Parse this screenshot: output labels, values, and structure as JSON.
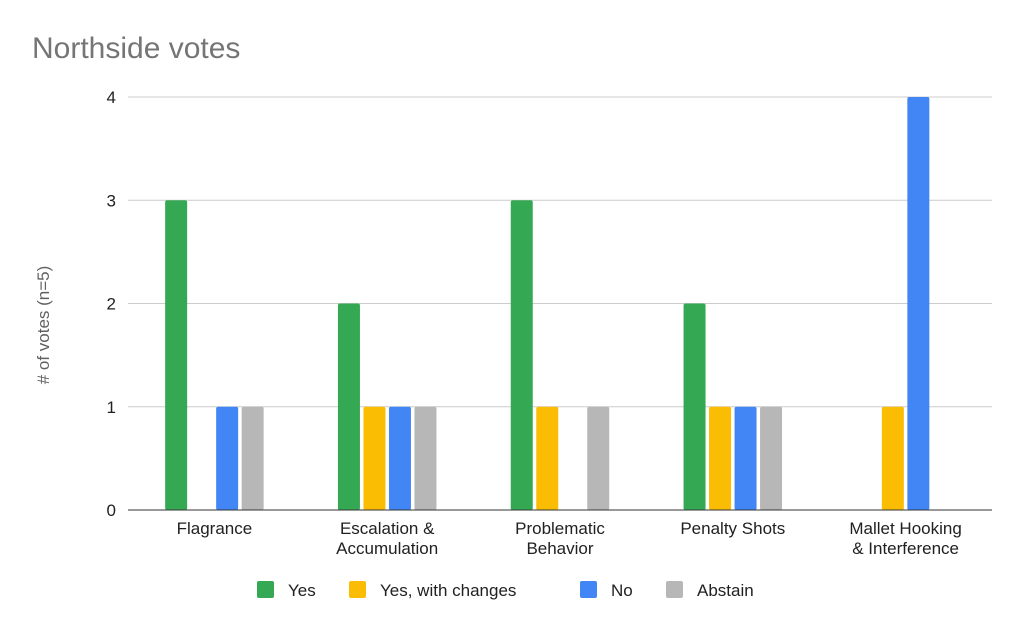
{
  "chart_data": {
    "type": "bar",
    "title": "Northside votes",
    "xlabel": "",
    "ylabel": "# of votes (n=5)",
    "ylim": [
      0,
      4
    ],
    "yticks": [
      0,
      1,
      2,
      3,
      4
    ],
    "grid": true,
    "legend_position": "bottom",
    "categories": [
      [
        "Flagrance"
      ],
      [
        "Escalation &",
        "Accumulation"
      ],
      [
        "Problematic",
        "Behavior"
      ],
      [
        "Penalty Shots"
      ],
      [
        "Mallet Hooking",
        "& Interference"
      ]
    ],
    "series": [
      {
        "name": "Yes",
        "color": "#34a853",
        "values": [
          3,
          2,
          3,
          2,
          0
        ]
      },
      {
        "name": "Yes, with changes",
        "color": "#fbbc04",
        "values": [
          0,
          1,
          1,
          1,
          1
        ]
      },
      {
        "name": "No",
        "color": "#4285f4",
        "values": [
          1,
          1,
          0,
          1,
          4
        ]
      },
      {
        "name": "Abstain",
        "color": "#b7b7b7",
        "values": [
          1,
          1,
          1,
          1,
          0
        ]
      }
    ]
  }
}
